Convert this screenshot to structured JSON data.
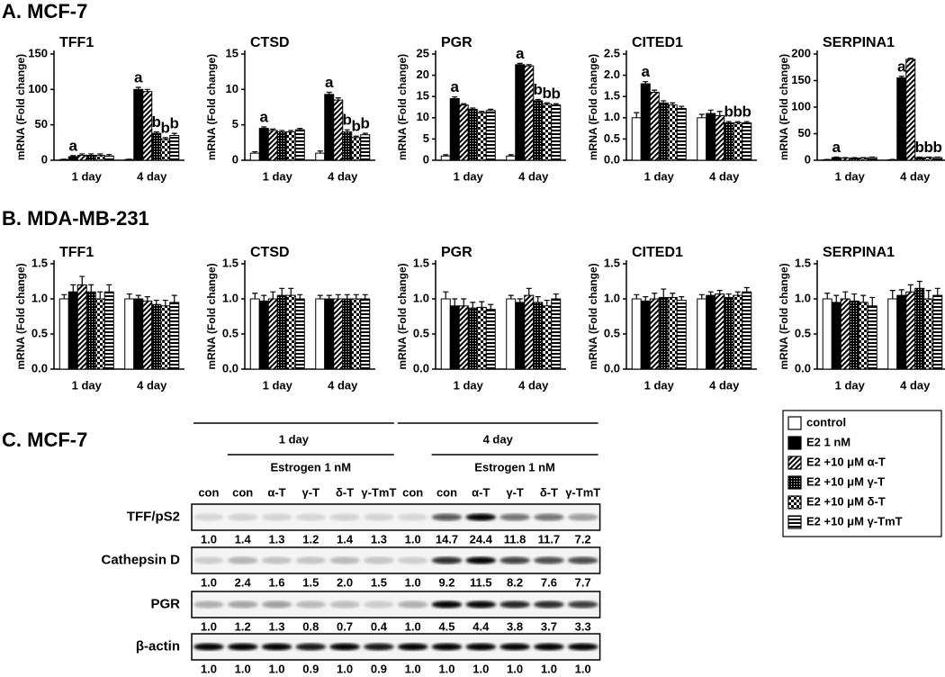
{
  "panel_titles": [
    "A. MCF-7",
    "B. MDA-MB-231",
    "C. MCF-7"
  ],
  "legend": [
    {
      "name": "control",
      "pattern": "white"
    },
    {
      "name": "E2 1 nM",
      "pattern": "black"
    },
    {
      "name": "E2 +10 μM α-T",
      "pattern": "diagonal"
    },
    {
      "name": "E2 +10 μM γ-T",
      "pattern": "dots"
    },
    {
      "name": "E2 +10 μM δ-T",
      "pattern": "checker"
    },
    {
      "name": "E2 +10 μM γ-TmT",
      "pattern": "horizontal"
    }
  ],
  "chart_data": [
    {
      "type": "bar",
      "title": "TFF1",
      "ylabel": "mRNA (Fold change)",
      "categories": [
        "1 day",
        "4 day"
      ],
      "ylim": [
        0,
        150
      ],
      "yticks": [
        0,
        50,
        100,
        150
      ],
      "series": [
        {
          "values": [
            1,
            1
          ],
          "errors": [
            0.5,
            0.5
          ],
          "letters": [
            null,
            null
          ]
        },
        {
          "values": [
            5,
            100
          ],
          "errors": [
            1.5,
            3
          ],
          "letters": [
            "a",
            "a"
          ]
        },
        {
          "values": [
            7,
            97
          ],
          "errors": [
            2,
            3
          ],
          "letters": [
            null,
            null
          ]
        },
        {
          "values": [
            7,
            38
          ],
          "errors": [
            2,
            2
          ],
          "letters": [
            null,
            "b"
          ]
        },
        {
          "values": [
            7,
            30
          ],
          "errors": [
            2,
            2
          ],
          "letters": [
            null,
            "b"
          ]
        },
        {
          "values": [
            6,
            35
          ],
          "errors": [
            2,
            3
          ],
          "letters": [
            null,
            "b"
          ]
        }
      ]
    },
    {
      "type": "bar",
      "title": "CTSD",
      "ylabel": "mRNA (Fold change)",
      "categories": [
        "1 day",
        "4 day"
      ],
      "ylim": [
        0,
        15
      ],
      "yticks": [
        0,
        5,
        10,
        15
      ],
      "series": [
        {
          "values": [
            1,
            1
          ],
          "errors": [
            0.2,
            0.3
          ],
          "letters": [
            null,
            null
          ]
        },
        {
          "values": [
            4.5,
            9.3
          ],
          "errors": [
            0.2,
            0.3
          ],
          "letters": [
            "a",
            "a"
          ]
        },
        {
          "values": [
            4.2,
            8.5
          ],
          "errors": [
            0.2,
            0.3
          ],
          "letters": [
            null,
            null
          ]
        },
        {
          "values": [
            4,
            4
          ],
          "errors": [
            0.2,
            0.3
          ],
          "letters": [
            null,
            "b"
          ]
        },
        {
          "values": [
            4,
            3.2
          ],
          "errors": [
            0.2,
            0.2
          ],
          "letters": [
            null,
            "b"
          ]
        },
        {
          "values": [
            4.3,
            3.6
          ],
          "errors": [
            0.2,
            0.2
          ],
          "letters": [
            null,
            "b"
          ]
        }
      ]
    },
    {
      "type": "bar",
      "title": "PGR",
      "ylabel": "mRNA (Fold change)",
      "categories": [
        "1 day",
        "4 day"
      ],
      "ylim": [
        0,
        25
      ],
      "yticks": [
        0,
        5,
        10,
        15,
        20,
        25
      ],
      "series": [
        {
          "values": [
            1,
            1
          ],
          "errors": [
            0.3,
            0.3
          ],
          "letters": [
            null,
            null
          ]
        },
        {
          "values": [
            14.5,
            22.5
          ],
          "errors": [
            0.4,
            0.3
          ],
          "letters": [
            "a",
            "a"
          ]
        },
        {
          "values": [
            13,
            22.2
          ],
          "errors": [
            0.3,
            0.3
          ],
          "letters": [
            null,
            null
          ]
        },
        {
          "values": [
            12,
            14
          ],
          "errors": [
            0.3,
            0.3
          ],
          "letters": [
            null,
            "b"
          ]
        },
        {
          "values": [
            11.2,
            13.2
          ],
          "errors": [
            0.3,
            0.3
          ],
          "letters": [
            null,
            "b"
          ]
        },
        {
          "values": [
            11.7,
            13
          ],
          "errors": [
            0.3,
            0.3
          ],
          "letters": [
            null,
            "b"
          ]
        }
      ]
    },
    {
      "type": "bar",
      "title": "CITED1",
      "ylabel": "mRNA (Fold change)",
      "categories": [
        "1 day",
        "4 day"
      ],
      "ylim": [
        0,
        2.5
      ],
      "yticks": [
        {
          "value": 0,
          "label": "0.0"
        },
        0.5,
        {
          "value": 1,
          "label": "1.0"
        },
        1.5,
        {
          "value": 2,
          "label": "2.0"
        },
        2.5
      ],
      "series": [
        {
          "values": [
            1,
            1
          ],
          "errors": [
            0.12,
            0.08
          ],
          "letters": [
            null,
            null
          ]
        },
        {
          "values": [
            1.8,
            1.1
          ],
          "errors": [
            0.05,
            0.08
          ],
          "letters": [
            "a",
            null
          ]
        },
        {
          "values": [
            1.6,
            1.05
          ],
          "errors": [
            0.05,
            0.1
          ],
          "letters": [
            null,
            null
          ]
        },
        {
          "values": [
            1.35,
            0.88
          ],
          "errors": [
            0.05,
            0.03
          ],
          "letters": [
            null,
            "b"
          ]
        },
        {
          "values": [
            1.3,
            0.88
          ],
          "errors": [
            0.05,
            0.03
          ],
          "letters": [
            null,
            "b"
          ]
        },
        {
          "values": [
            1.22,
            0.88
          ],
          "errors": [
            0.05,
            0.03
          ],
          "letters": [
            null,
            "b"
          ]
        }
      ]
    },
    {
      "type": "bar",
      "title": "SERPINA1",
      "ylabel": "mRNA (Fold change)",
      "categories": [
        "1 day",
        "4 day"
      ],
      "ylim": [
        0,
        200
      ],
      "yticks": [
        0,
        50,
        100,
        150,
        200
      ],
      "series": [
        {
          "values": [
            1,
            1
          ],
          "errors": [
            0.5,
            0.5
          ],
          "letters": [
            null,
            null
          ]
        },
        {
          "values": [
            5,
            155
          ],
          "errors": [
            1,
            3
          ],
          "letters": [
            "a",
            "a"
          ]
        },
        {
          "values": [
            4,
            190
          ],
          "errors": [
            1,
            2
          ],
          "letters": [
            null,
            null
          ]
        },
        {
          "values": [
            4,
            5
          ],
          "errors": [
            1,
            1
          ],
          "letters": [
            null,
            "b"
          ]
        },
        {
          "values": [
            4,
            5
          ],
          "errors": [
            1,
            1
          ],
          "letters": [
            null,
            "b"
          ]
        },
        {
          "values": [
            5,
            5
          ],
          "errors": [
            1,
            1
          ],
          "letters": [
            null,
            "b"
          ]
        }
      ]
    },
    {
      "type": "bar",
      "title": "TFF1",
      "ylabel": "mRNA (Fold change)",
      "categories": [
        "1 day",
        "4 day"
      ],
      "ylim": [
        0,
        1.5
      ],
      "yticks": [
        {
          "value": 0,
          "label": "0.0"
        },
        0.5,
        {
          "value": 1,
          "label": "1.0"
        },
        1.5
      ],
      "series": [
        {
          "values": [
            1,
            1
          ],
          "errors": [
            0.06,
            0.07
          ],
          "letters": [
            null,
            null
          ]
        },
        {
          "values": [
            1.1,
            1
          ],
          "errors": [
            0.1,
            0.05
          ],
          "letters": [
            null,
            null
          ]
        },
        {
          "values": [
            1.2,
            0.97
          ],
          "errors": [
            0.12,
            0.06
          ],
          "letters": [
            null,
            null
          ]
        },
        {
          "values": [
            1.1,
            0.92
          ],
          "errors": [
            0.1,
            0.06
          ],
          "letters": [
            null,
            null
          ]
        },
        {
          "values": [
            1,
            0.9
          ],
          "errors": [
            0.1,
            0.08
          ],
          "letters": [
            null,
            null
          ]
        },
        {
          "values": [
            1.1,
            0.95
          ],
          "errors": [
            0.1,
            0.1
          ],
          "letters": [
            null,
            null
          ]
        }
      ]
    },
    {
      "type": "bar",
      "title": "CTSD",
      "ylabel": "mRNA (Fold change)",
      "categories": [
        "1 day",
        "4 day"
      ],
      "ylim": [
        0,
        1.5
      ],
      "yticks": [
        {
          "value": 0,
          "label": "0.0"
        },
        0.5,
        {
          "value": 1,
          "label": "1.0"
        },
        1.5
      ],
      "series": [
        {
          "values": [
            1,
            1
          ],
          "errors": [
            0.08,
            0.05
          ],
          "letters": [
            null,
            null
          ]
        },
        {
          "values": [
            0.97,
            1
          ],
          "errors": [
            0.08,
            0.05
          ],
          "letters": [
            null,
            null
          ]
        },
        {
          "values": [
            1,
            1
          ],
          "errors": [
            0.1,
            0.06
          ],
          "letters": [
            null,
            null
          ]
        },
        {
          "values": [
            1.05,
            1
          ],
          "errors": [
            0.1,
            0.06
          ],
          "letters": [
            null,
            null
          ]
        },
        {
          "values": [
            1.05,
            1
          ],
          "errors": [
            0.1,
            0.06
          ],
          "letters": [
            null,
            null
          ]
        },
        {
          "values": [
            1,
            1
          ],
          "errors": [
            0.06,
            0.06
          ],
          "letters": [
            null,
            null
          ]
        }
      ]
    },
    {
      "type": "bar",
      "title": "PGR",
      "ylabel": "mRNA (Fold change)",
      "categories": [
        "1 day",
        "4 day"
      ],
      "ylim": [
        0,
        1.5
      ],
      "yticks": [
        {
          "value": 0,
          "label": "0.0"
        },
        0.5,
        {
          "value": 1,
          "label": "1.0"
        },
        1.5
      ],
      "series": [
        {
          "values": [
            1,
            1
          ],
          "errors": [
            0.1,
            0.05
          ],
          "letters": [
            null,
            null
          ]
        },
        {
          "values": [
            0.9,
            0.95
          ],
          "errors": [
            0.1,
            0.05
          ],
          "letters": [
            null,
            null
          ]
        },
        {
          "values": [
            0.9,
            1.05
          ],
          "errors": [
            0.1,
            0.1
          ],
          "letters": [
            null,
            null
          ]
        },
        {
          "values": [
            0.87,
            0.95
          ],
          "errors": [
            0.08,
            0.08
          ],
          "letters": [
            null,
            null
          ]
        },
        {
          "values": [
            0.88,
            0.9
          ],
          "errors": [
            0.08,
            0.08
          ],
          "letters": [
            null,
            null
          ]
        },
        {
          "values": [
            0.85,
            1
          ],
          "errors": [
            0.07,
            0.07
          ],
          "letters": [
            null,
            null
          ]
        }
      ]
    },
    {
      "type": "bar",
      "title": "CITED1",
      "ylabel": "mRNA (Fold change)",
      "categories": [
        "1 day",
        "4 day"
      ],
      "ylim": [
        0,
        1.5
      ],
      "yticks": [
        {
          "value": 0,
          "label": "0.0"
        },
        0.5,
        {
          "value": 1,
          "label": "1.0"
        },
        1.5
      ],
      "series": [
        {
          "values": [
            1,
            1
          ],
          "errors": [
            0.06,
            0.06
          ],
          "letters": [
            null,
            null
          ]
        },
        {
          "values": [
            0.97,
            1.05
          ],
          "errors": [
            0.06,
            0.05
          ],
          "letters": [
            null,
            null
          ]
        },
        {
          "values": [
            1,
            1.07
          ],
          "errors": [
            0.08,
            0.05
          ],
          "letters": [
            null,
            null
          ]
        },
        {
          "values": [
            1.02,
            1.02
          ],
          "errors": [
            0.12,
            0.05
          ],
          "letters": [
            null,
            null
          ]
        },
        {
          "values": [
            1.02,
            1.05
          ],
          "errors": [
            0.06,
            0.05
          ],
          "letters": [
            null,
            null
          ]
        },
        {
          "values": [
            0.98,
            1.1
          ],
          "errors": [
            0.05,
            0.06
          ],
          "letters": [
            null,
            null
          ]
        }
      ]
    },
    {
      "type": "bar",
      "title": "SERPINA1",
      "ylabel": "mRNA (Fold change)",
      "categories": [
        "1 day",
        "4 day"
      ],
      "ylim": [
        0,
        1.5
      ],
      "yticks": [
        {
          "value": 0,
          "label": "0.0"
        },
        0.5,
        {
          "value": 1,
          "label": "1.0"
        },
        1.5
      ],
      "series": [
        {
          "values": [
            1,
            1
          ],
          "errors": [
            0.08,
            0.12
          ],
          "letters": [
            null,
            null
          ]
        },
        {
          "values": [
            0.95,
            1.05
          ],
          "errors": [
            0.1,
            0.08
          ],
          "letters": [
            null,
            null
          ]
        },
        {
          "values": [
            1,
            1.1
          ],
          "errors": [
            0.1,
            0.1
          ],
          "letters": [
            null,
            null
          ]
        },
        {
          "values": [
            0.97,
            1.15
          ],
          "errors": [
            0.1,
            0.1
          ],
          "letters": [
            null,
            null
          ]
        },
        {
          "values": [
            0.95,
            1
          ],
          "errors": [
            0.1,
            0.12
          ],
          "letters": [
            null,
            null
          ]
        },
        {
          "values": [
            0.9,
            1.05
          ],
          "errors": [
            0.12,
            0.1
          ],
          "letters": [
            null,
            null
          ]
        }
      ]
    }
  ],
  "blot": {
    "groups": [
      {
        "label": "1 day",
        "treatment": "Estrogen 1 nM"
      },
      {
        "label": "4 day",
        "treatment": "Estrogen 1 nM"
      }
    ],
    "lanes": [
      "con",
      "con",
      "α-T",
      "γ-T",
      "δ-T",
      "γ-TmT",
      "con",
      "con",
      "α-T",
      "γ-T",
      "δ-T",
      "γ-TmT"
    ],
    "rows": [
      {
        "name": "TFF/pS2",
        "quantification": [
          "1.0",
          "1.4",
          "1.3",
          "1.2",
          "1.4",
          "1.3",
          "1.0",
          "14.7",
          "24.4",
          "11.8",
          "11.7",
          "7.2"
        ]
      },
      {
        "name": "Cathepsin D",
        "quantification": [
          "1.0",
          "2.4",
          "1.6",
          "1.5",
          "2.0",
          "1.5",
          "1.0",
          "9.2",
          "11.5",
          "8.2",
          "7.6",
          "7.7"
        ]
      },
      {
        "name": "PGR",
        "quantification": [
          "1.0",
          "1.2",
          "1.3",
          "0.8",
          "0.7",
          "0.4",
          "1.0",
          "4.5",
          "4.4",
          "3.8",
          "3.7",
          "3.3"
        ]
      },
      {
        "name": "β-actin",
        "quantification": [
          "1.0",
          "1.0",
          "1.0",
          "0.9",
          "1.0",
          "0.9",
          "1.0",
          "1.0",
          "1.0",
          "1.0",
          "1.0",
          "1.0"
        ]
      }
    ]
  }
}
